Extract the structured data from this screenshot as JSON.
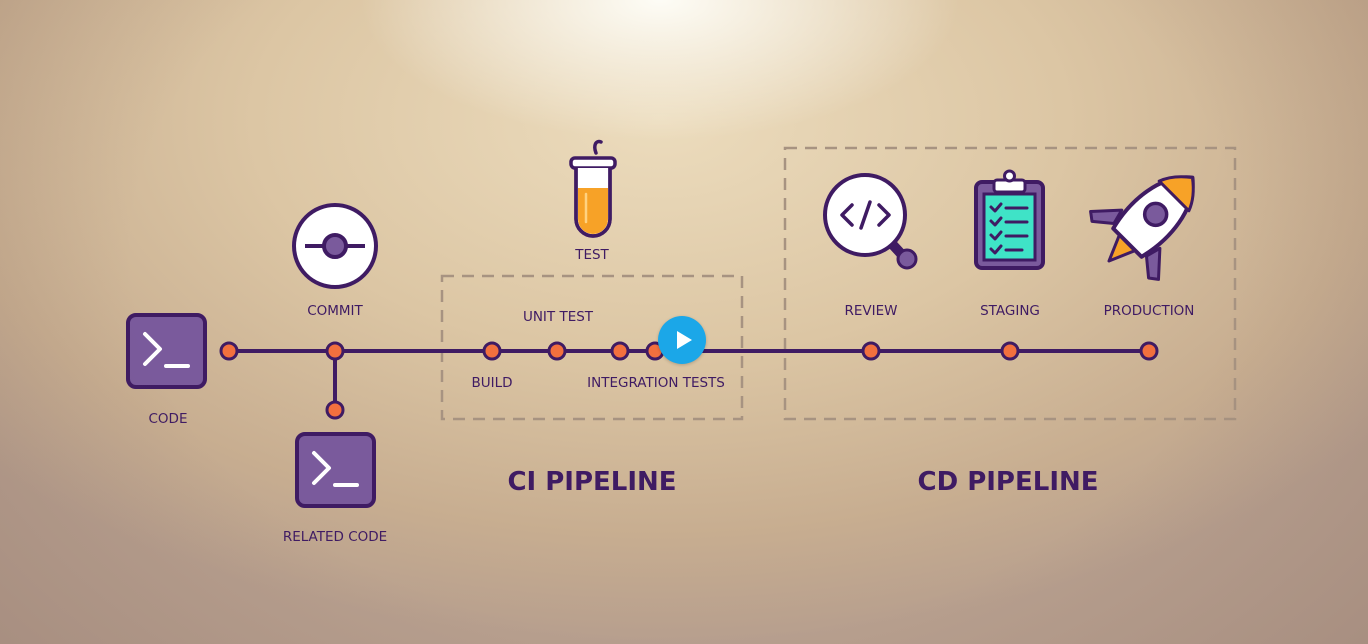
{
  "labels": {
    "code": "CODE",
    "commit": "COMMIT",
    "related_code": "RELATED CODE",
    "test": "TEST",
    "unit_test": "UNIT TEST",
    "build": "BUILD",
    "integration_tests": "INTEGRATION TESTS",
    "review": "REVIEW",
    "staging": "STAGING",
    "production": "PRODUCTION",
    "ci_pipeline": "CI PIPELINE",
    "cd_pipeline": "CD PIPELINE"
  },
  "icons": {
    "code": "terminal-icon",
    "commit": "commit-icon",
    "related_code": "terminal-icon",
    "test": "test-tube-icon",
    "review": "code-review-icon",
    "staging": "clipboard-checklist-icon",
    "production": "rocket-icon",
    "play": "play-icon"
  },
  "colors": {
    "line": "#3f1b63",
    "node": "#f2703e",
    "box": "#7a5a9c",
    "tube_fill": "#f7a227",
    "clipboard": "#3fe3c7"
  }
}
